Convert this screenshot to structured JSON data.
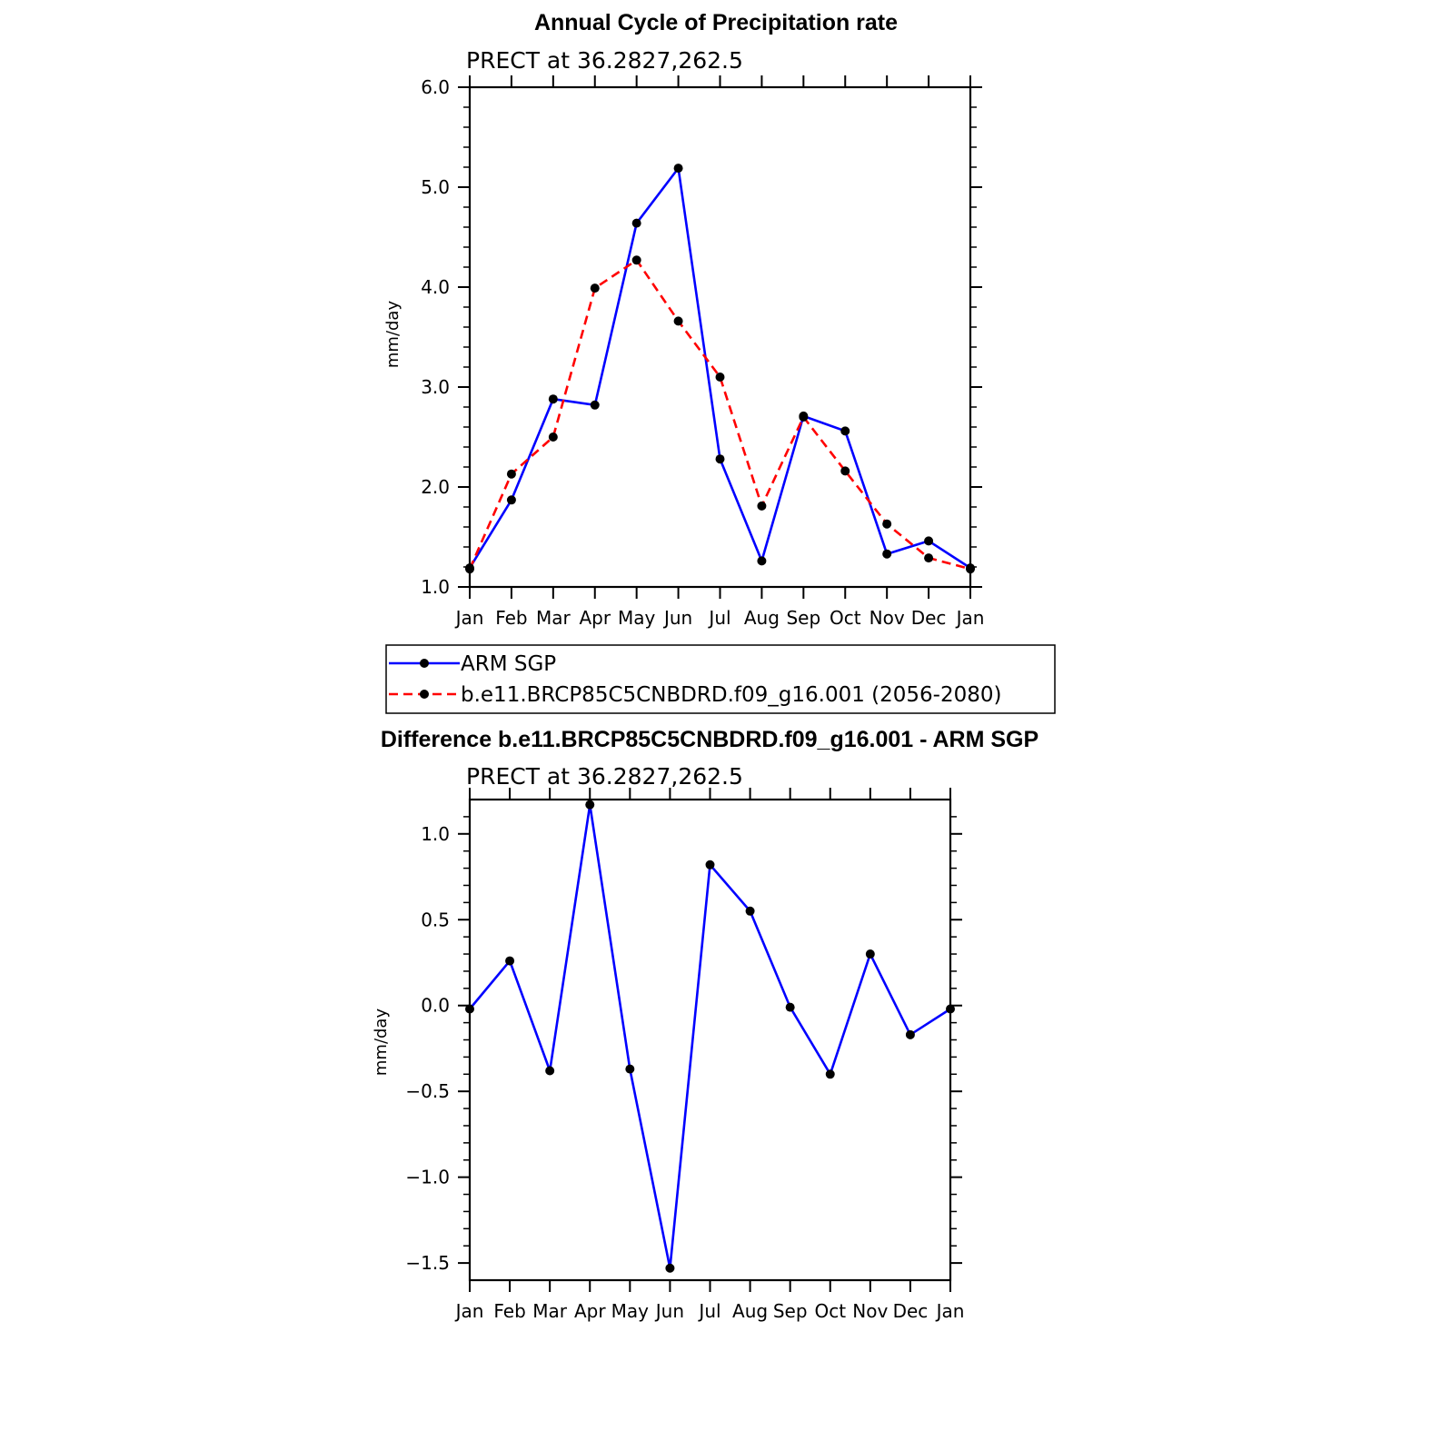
{
  "chart_data": [
    {
      "type": "line",
      "title": "Annual Cycle of Precipitation rate",
      "subtitle": "PRECT at 36.2827,262.5",
      "xlabel": "",
      "ylabel": "mm/day",
      "categories": [
        "Jan",
        "Feb",
        "Mar",
        "Apr",
        "May",
        "Jun",
        "Jul",
        "Aug",
        "Sep",
        "Oct",
        "Nov",
        "Dec",
        "Jan"
      ],
      "yticks": [
        "1.0",
        "2.0",
        "3.0",
        "4.0",
        "5.0",
        "6.0"
      ],
      "ylim": [
        1.0,
        6.0
      ],
      "grid": false,
      "legend": "bottom",
      "series": [
        {
          "name": "ARM SGP",
          "color": "#0000ff",
          "dash": "solid",
          "values": [
            1.19,
            1.87,
            2.88,
            2.82,
            4.64,
            5.19,
            2.28,
            1.26,
            2.71,
            2.56,
            1.33,
            1.46,
            1.19
          ]
        },
        {
          "name": "b.e11.BRCP85C5CNBDRD.f09_g16.001 (2056-2080)",
          "color": "#ff0000",
          "dash": "dashed",
          "values": [
            1.18,
            2.13,
            2.5,
            3.99,
            4.27,
            3.66,
            3.1,
            1.81,
            2.7,
            2.16,
            1.63,
            1.29,
            1.18
          ]
        }
      ]
    },
    {
      "type": "line",
      "title": "Difference b.e11.BRCP85C5CNBDRD.f09_g16.001 - ARM SGP",
      "subtitle": "PRECT at 36.2827,262.5",
      "xlabel": "",
      "ylabel": "mm/day",
      "categories": [
        "Jan",
        "Feb",
        "Mar",
        "Apr",
        "May",
        "Jun",
        "Jul",
        "Aug",
        "Sep",
        "Oct",
        "Nov",
        "Dec",
        "Jan"
      ],
      "yticks": [
        "1.0",
        "0.5",
        "0.0",
        "−0.5",
        "−1.0",
        "−1.5"
      ],
      "ylim": [
        -1.6,
        1.2
      ],
      "grid": false,
      "series": [
        {
          "color": "#0000ff",
          "dash": "solid",
          "values": [
            -0.02,
            0.26,
            -0.38,
            1.17,
            -0.37,
            -1.53,
            0.82,
            0.55,
            -0.01,
            -0.4,
            0.3,
            -0.17,
            -0.02
          ]
        }
      ]
    }
  ]
}
